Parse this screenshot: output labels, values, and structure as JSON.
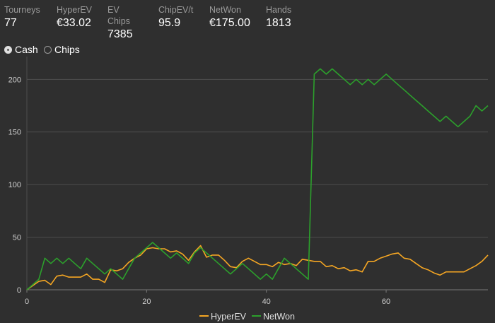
{
  "stats": [
    {
      "label": "Tourneys",
      "value": "77"
    },
    {
      "label": "HyperEV",
      "value": "€33.02"
    },
    {
      "label": "EV Chips",
      "value": "7385"
    },
    {
      "label": "ChipEV/t",
      "value": "95.9"
    },
    {
      "label": "NetWon",
      "value": "€175.00"
    },
    {
      "label": "Hands",
      "value": "1813"
    }
  ],
  "toggle": {
    "options": [
      {
        "label": "Cash",
        "selected": true
      },
      {
        "label": "Chips",
        "selected": false
      }
    ]
  },
  "chart_data": {
    "type": "line",
    "x": [
      0,
      1,
      2,
      3,
      4,
      5,
      6,
      7,
      8,
      9,
      10,
      11,
      12,
      13,
      14,
      15,
      16,
      17,
      18,
      19,
      20,
      21,
      22,
      23,
      24,
      25,
      26,
      27,
      28,
      29,
      30,
      31,
      32,
      33,
      34,
      35,
      36,
      37,
      38,
      39,
      40,
      41,
      42,
      43,
      44,
      45,
      46,
      47,
      48,
      49,
      50,
      51,
      52,
      53,
      54,
      55,
      56,
      57,
      58,
      59,
      60,
      61,
      62,
      63,
      64,
      65,
      66,
      67,
      68,
      69,
      70,
      71,
      72,
      73,
      74,
      75,
      76,
      77
    ],
    "series": [
      {
        "name": "HyperEV",
        "color": "#f5a623",
        "values": [
          0,
          4,
          8,
          9,
          5,
          13,
          14,
          12,
          12,
          12,
          15,
          10,
          10,
          7,
          19,
          18,
          20,
          26,
          30,
          33,
          39,
          40,
          39,
          39,
          36,
          37,
          34,
          28,
          36,
          42,
          31,
          33,
          33,
          28,
          22,
          21,
          27,
          30,
          27,
          24,
          24,
          22,
          26,
          24,
          25,
          23,
          29,
          28,
          27,
          27,
          22,
          23,
          20,
          21,
          18,
          19,
          17,
          27,
          27,
          30,
          32,
          34,
          35,
          30,
          29,
          25,
          21,
          19,
          16,
          14,
          17,
          17,
          17,
          17,
          20,
          23,
          27,
          33
        ]
      },
      {
        "name": "NetWon",
        "color": "#2ca02c",
        "values": [
          0,
          5,
          10,
          30,
          25,
          30,
          25,
          30,
          25,
          20,
          30,
          25,
          20,
          15,
          20,
          15,
          10,
          20,
          30,
          35,
          40,
          45,
          40,
          35,
          30,
          35,
          30,
          25,
          35,
          40,
          35,
          30,
          25,
          20,
          15,
          20,
          25,
          20,
          15,
          10,
          15,
          10,
          20,
          30,
          25,
          20,
          15,
          10,
          205,
          210,
          205,
          210,
          205,
          200,
          195,
          200,
          195,
          200,
          195,
          200,
          205,
          200,
          195,
          190,
          185,
          180,
          175,
          170,
          165,
          160,
          165,
          160,
          155,
          160,
          165,
          175,
          170,
          175
        ]
      }
    ],
    "xticks": [
      0,
      20,
      40,
      60
    ],
    "yticks": [
      0,
      50,
      100,
      150,
      200
    ],
    "xlim": [
      0,
      77
    ],
    "ylim": [
      0,
      215
    ],
    "grid": "horizontal",
    "legend": "bottom-center"
  }
}
